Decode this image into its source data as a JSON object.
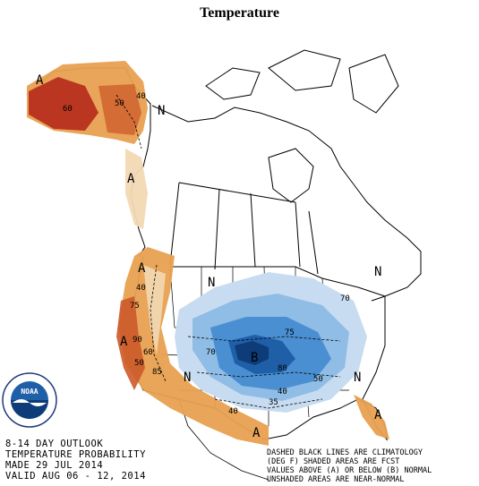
{
  "title": "Temperature",
  "outlook": {
    "line1": "8-14 DAY OUTLOOK",
    "line2": "TEMPERATURE PROBABILITY",
    "made": "MADE  29 JUL 2014",
    "valid": "VALID  AUG 06 - 12, 2014"
  },
  "notes": {
    "line1": "DASHED BLACK LINES ARE CLIMATOLOGY",
    "line2": "(DEG F) SHADED AREAS ARE FCST",
    "line3": "VALUES ABOVE (A) OR BELOW (B) NORMAL",
    "line4": "UNSHADED AREAS ARE NEAR-NORMAL"
  },
  "logo": {
    "text": "NOAA",
    "ring_text": "NATIONAL OCEANIC AND ATMOSPHERIC ADMINISTRATION · U.S. DEPARTMENT OF COMMERCE"
  },
  "map_labels": {
    "a_alaska": "A",
    "a_panhandle": "A",
    "a_west": "A",
    "a_southwest": "A",
    "a_southtexas": "A",
    "a_florida": "A",
    "n_alaska": "N",
    "n_north": "N",
    "n_southwest": "N",
    "n_northeast": "N",
    "n_southeast": "N",
    "b_central": "B",
    "c60": "60",
    "c50": "50",
    "c40a": "40",
    "c40b": "40",
    "c75": "75",
    "c85": "85",
    "c70a": "70",
    "c70b": "70",
    "c75b": "75",
    "c80": "80",
    "c90": "90",
    "c40c": "40",
    "c35": "35",
    "c50b": "50",
    "c60b": "60",
    "c50c": "50",
    "c40d": "40"
  },
  "colors": {
    "above_light": "#f2d9b3",
    "above_mid": "#e8a050",
    "above_dark": "#cc5a2a",
    "above_darkest": "#b52a1a",
    "below_light": "#c7dcf0",
    "below_mid": "#8fbde6",
    "below_dark": "#4a8fd1",
    "below_darkest": "#1f5fa8",
    "below_core": "#0d3c78"
  }
}
